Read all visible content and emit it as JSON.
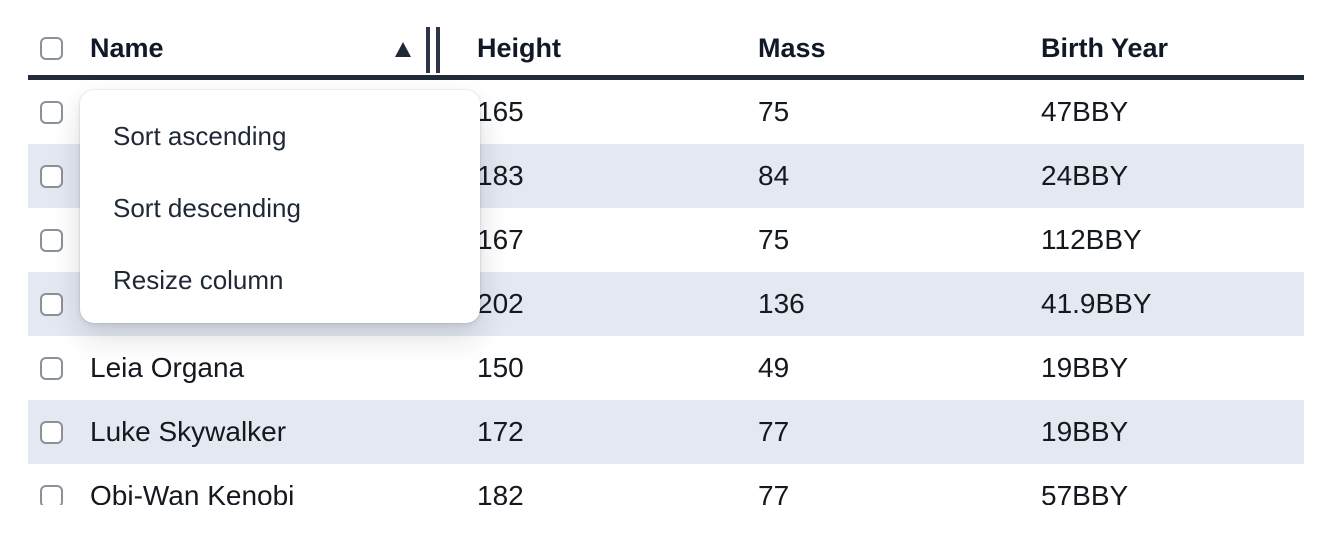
{
  "table": {
    "columns": [
      {
        "label": "Name"
      },
      {
        "label": "Height"
      },
      {
        "label": "Mass"
      },
      {
        "label": "Birth Year"
      }
    ],
    "sort": {
      "column": "Name",
      "direction": "ascending"
    },
    "rows": [
      {
        "name": "",
        "height": "165",
        "mass": "75",
        "birth_year": "47BBY"
      },
      {
        "name": "",
        "height": "183",
        "mass": "84",
        "birth_year": "24BBY"
      },
      {
        "name": "",
        "height": "167",
        "mass": "75",
        "birth_year": "112BBY"
      },
      {
        "name": "",
        "height": "202",
        "mass": "136",
        "birth_year": "41.9BBY"
      },
      {
        "name": "Leia Organa",
        "height": "150",
        "mass": "49",
        "birth_year": "19BBY"
      },
      {
        "name": "Luke Skywalker",
        "height": "172",
        "mass": "77",
        "birth_year": "19BBY"
      },
      {
        "name": "Obi-Wan Kenobi",
        "height": "182",
        "mass": "77",
        "birth_year": "57BBY"
      }
    ],
    "checkboxes_checked": false
  },
  "context_menu": {
    "items": [
      {
        "label": "Sort ascending"
      },
      {
        "label": "Sort descending"
      },
      {
        "label": "Resize column"
      }
    ]
  },
  "colors": {
    "stripe": "#e4e8f0",
    "header_border": "#212b3a",
    "text": "#14181f",
    "menu_text": "#1e2838",
    "checkbox_border": "#8b919b"
  }
}
